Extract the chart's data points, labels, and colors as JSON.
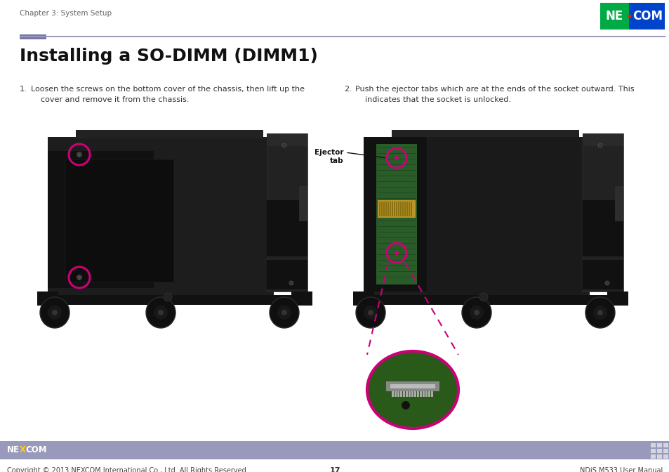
{
  "page_bg": "#ffffff",
  "header_text": "Chapter 3: System Setup",
  "header_text_color": "#666666",
  "header_text_size": 7.5,
  "divider_color": "#9999bb",
  "divider_accent_color": "#7777aa",
  "title": "Installing a SO-DIMM (DIMM1)",
  "title_color": "#111111",
  "title_size": 18,
  "step1_num": "1.",
  "step1_body": "Loosen the screws on the bottom cover of the chassis, then lift up the\n    cover and remove it from the chassis.",
  "step2_num": "2.",
  "step2_body": "Push the ejector tabs which are at the ends of the socket outward. This\n    indicates that the socket is unlocked.",
  "step_text_color": "#333333",
  "step_text_size": 8,
  "footer_bg": "#9999bb",
  "footer_copyright": "Copyright © 2013 NEXCOM International Co., Ltd. All Rights Reserved.",
  "footer_page": "17",
  "footer_manual": "NDiS M533 User Manual",
  "footer_text_size": 7,
  "nexcom_logo_bg_green": "#00aa44",
  "nexcom_logo_bg_blue": "#0044cc",
  "annotation_color": "#cc0077",
  "ejector_label": "Ejector\ntab",
  "device_body": "#1a1a1a",
  "device_body2": "#222222",
  "device_inner": "#0e0e0e",
  "device_panel": "#151515",
  "device_stand": "#111111",
  "device_foot": "#0a0a0a",
  "green_board": "#2a5c2a",
  "gold_connector": "#b8952a"
}
